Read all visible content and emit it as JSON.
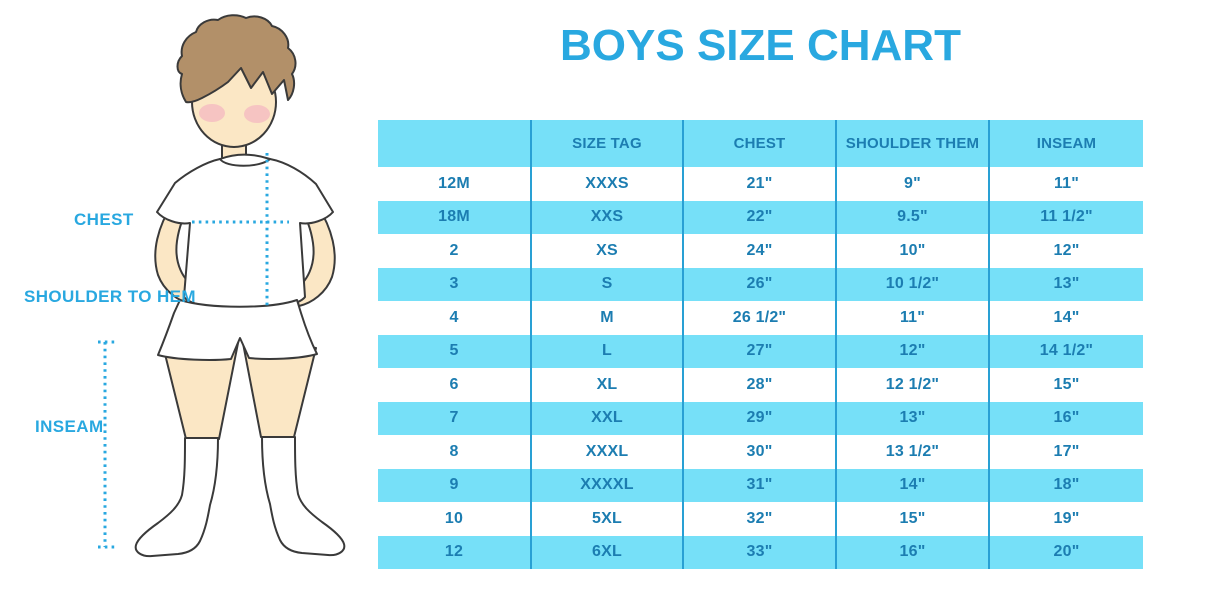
{
  "title": "BOYS SIZE CHART",
  "colors": {
    "accent": "#29A8E0",
    "row_blue": "#76E0F8",
    "separator_blue": "#29A0D4",
    "table_text": "#1C7DB1",
    "skin": "#FBE7C5",
    "hair": "#B29069",
    "blush": "#F4AEC0"
  },
  "figure": {
    "labels": {
      "chest": "CHEST",
      "shoulder_to_hem": "SHOULDER TO HEM",
      "inseam": "INSEAM"
    }
  },
  "chart_data": {
    "type": "table",
    "title": "BOYS SIZE CHART",
    "columns": [
      "",
      "SIZE TAG",
      "CHEST",
      "SHOULDER THEM",
      "INSEAM"
    ],
    "rows": [
      [
        "12M",
        "XXXS",
        "21\"",
        "9\"",
        "11\""
      ],
      [
        "18M",
        "XXS",
        "22\"",
        "9.5\"",
        "11 1/2\""
      ],
      [
        "2",
        "XS",
        "24\"",
        "10\"",
        "12\""
      ],
      [
        "3",
        "S",
        "26\"",
        "10 1/2\"",
        "13\""
      ],
      [
        "4",
        "M",
        "26 1/2\"",
        "11\"",
        "14\""
      ],
      [
        "5",
        "L",
        "27\"",
        "12\"",
        "14 1/2\""
      ],
      [
        "6",
        "XL",
        "28\"",
        "12 1/2\"",
        "15\""
      ],
      [
        "7",
        "XXL",
        "29\"",
        "13\"",
        "16\""
      ],
      [
        "8",
        "XXXL",
        "30\"",
        "13 1/2\"",
        "17\""
      ],
      [
        "9",
        "XXXXL",
        "31\"",
        "14\"",
        "18\""
      ],
      [
        "10",
        "5XL",
        "32\"",
        "15\"",
        "19\""
      ],
      [
        "12",
        "6XL",
        "33\"",
        "16\"",
        "20\""
      ]
    ],
    "layout": {
      "header_background": "#76E0F8",
      "row_stripe_colors": [
        "#FFFFFF",
        "#76E0F8"
      ],
      "column_separator_color": "#29A0D4"
    }
  }
}
